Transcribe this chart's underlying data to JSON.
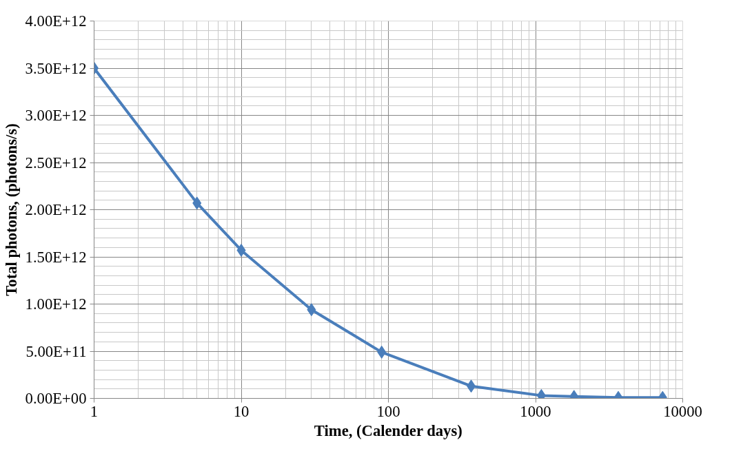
{
  "chart_data": {
    "type": "line",
    "xlabel": "Time, (Calender days)",
    "ylabel": "Total photons, (photons/s)",
    "x": [
      1,
      5,
      10,
      30,
      90,
      365,
      1095,
      1825,
      3650,
      7300
    ],
    "series": [
      {
        "color": "#4a7ebb",
        "values": [
          3500000000000.0,
          2070000000000.0,
          1570000000000.0,
          940000000000.0,
          490000000000.0,
          130000000000.0,
          30000000000.0,
          20000000000.0,
          10000000000.0,
          10000000000.0
        ]
      }
    ],
    "log": "x",
    "xlim": [
      1,
      10000
    ],
    "xticks": [
      1,
      10,
      100,
      1000,
      10000
    ],
    "ylim": [
      0,
      4000000000000.0
    ],
    "yticks": [
      {
        "value": 0,
        "label": "0.00E+00"
      },
      {
        "value": 500000000000.0,
        "label": "5.00E+11"
      },
      {
        "value": 1000000000000.0,
        "label": "1.00E+12"
      },
      {
        "value": 1500000000000.0,
        "label": "1.50E+12"
      },
      {
        "value": 2000000000000.0,
        "label": "2.00E+12"
      },
      {
        "value": 2500000000000.0,
        "label": "2.50E+12"
      },
      {
        "value": 3000000000000.0,
        "label": "3.00E+12"
      },
      {
        "value": 3500000000000.0,
        "label": "3.50E+12"
      },
      {
        "value": 4000000000000.0,
        "label": "4.00E+12"
      }
    ],
    "grid": true,
    "marker": "diamond",
    "line_style": "solid"
  }
}
